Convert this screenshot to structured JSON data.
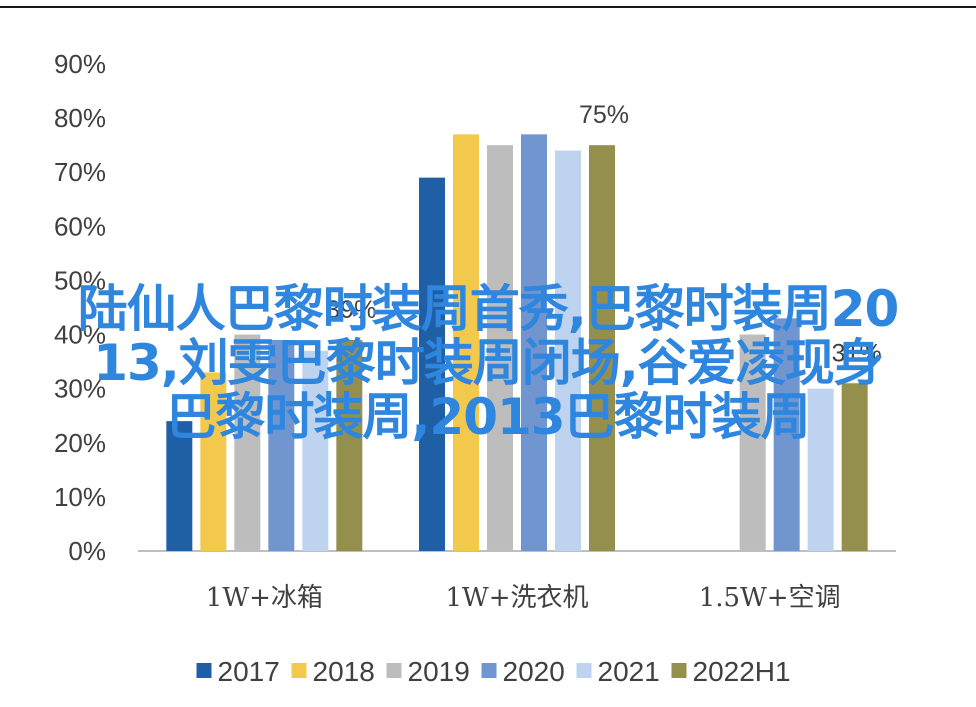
{
  "chart_data": {
    "type": "bar",
    "categories": [
      "1W+冰箱",
      "1W+洗衣机",
      "1.5W+空调"
    ],
    "series": [
      {
        "name": "2017",
        "values": [
          24,
          69,
          0
        ],
        "color": "#1f5fa6"
      },
      {
        "name": "2018",
        "values": [
          33,
          77,
          0
        ],
        "color": "#f2c94c"
      },
      {
        "name": "2019",
        "values": [
          40,
          75,
          40
        ],
        "color": "#bdbdbd"
      },
      {
        "name": "2020",
        "values": [
          39,
          77,
          43
        ],
        "color": "#7196cf"
      },
      {
        "name": "2021",
        "values": [
          37,
          74,
          30
        ],
        "color": "#bdd3ef"
      },
      {
        "name": "2022H1",
        "values": [
          39,
          75,
          31
        ],
        "color": "#958f4e"
      }
    ],
    "ylim": [
      0,
      90
    ],
    "yticks": [
      "0%",
      "10%",
      "20%",
      "30%",
      "40%",
      "50%",
      "60%",
      "70%",
      "80%",
      "90%"
    ],
    "data_labels": [
      {
        "text": "75%",
        "category": 1,
        "series": 5
      },
      {
        "text": "31%",
        "category": 2,
        "series": 5
      },
      {
        "text": "39%",
        "category": 0,
        "series": 5
      }
    ],
    "legend_position": "bottom",
    "grid": false
  },
  "overlay_text": [
    "陆仙人巴黎时装周首秀,巴黎时装周20",
    "13,刘雯巴黎时装周闭场,谷爱凌现身",
    "巴黎时装周,2013巴黎时装周"
  ],
  "colors": {
    "axis": "#bfbfbf",
    "text": "#404040",
    "overlay": "#2e86de"
  }
}
